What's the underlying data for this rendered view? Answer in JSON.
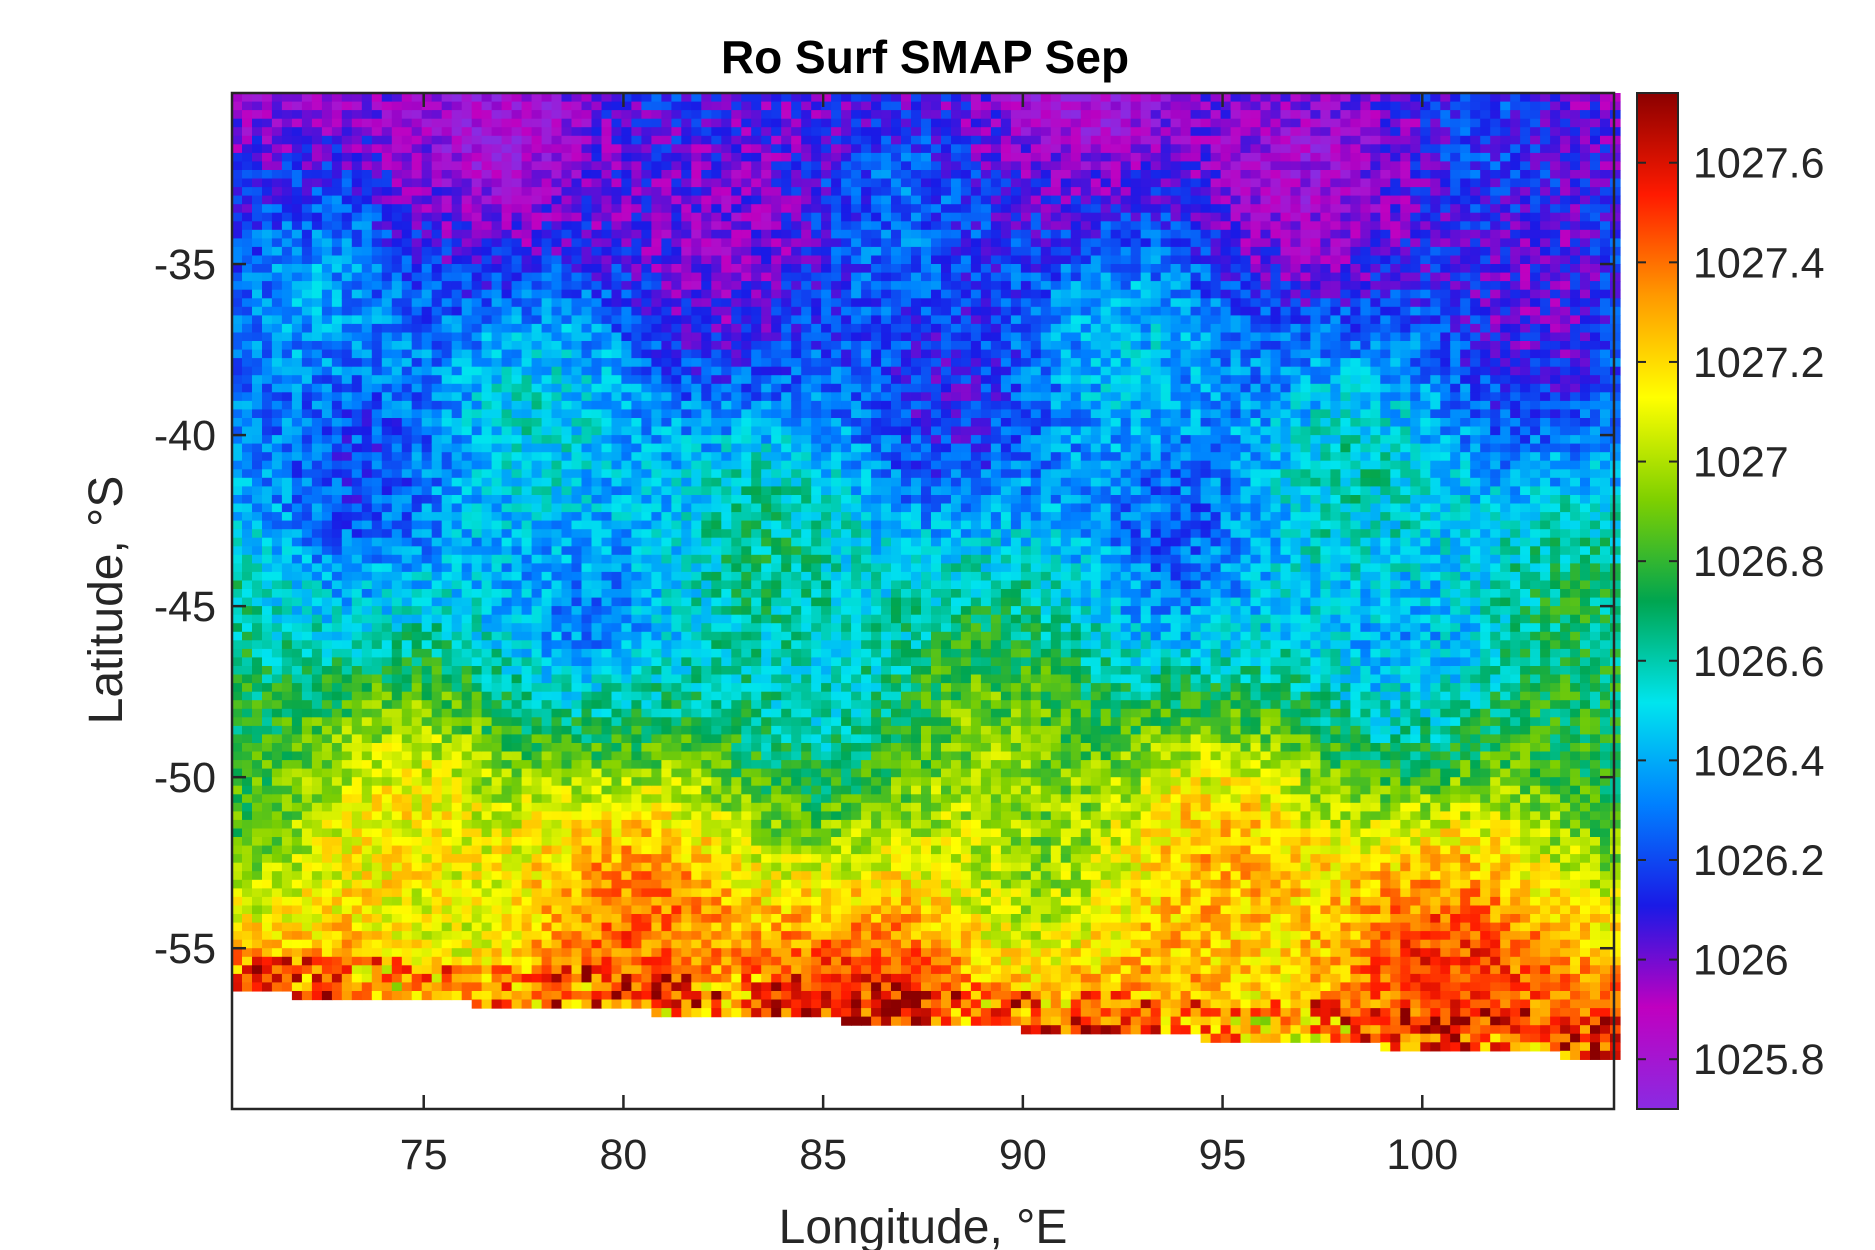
{
  "chart_data": {
    "type": "heatmap",
    "title": "Ro Surf SMAP Sep",
    "xlabel": "Longitude, °E",
    "ylabel": "Latitude, °S",
    "xlim": [
      70.2,
      104.8
    ],
    "ylim": [
      -59.7,
      -30.0
    ],
    "x_ticks": [
      75,
      80,
      85,
      90,
      95,
      100
    ],
    "x_tick_labels": [
      "75",
      "80",
      "85",
      "90",
      "95",
      "100"
    ],
    "y_ticks": [
      -35,
      -40,
      -45,
      -50,
      -55
    ],
    "y_tick_labels": [
      "-35",
      "-40",
      "-45",
      "-50",
      "-55"
    ],
    "grid": false,
    "colorbar": {
      "position": "right",
      "range": [
        1025.7,
        1027.74
      ],
      "ticks": [
        1025.8,
        1026,
        1026.2,
        1026.4,
        1026.6,
        1026.8,
        1027,
        1027.2,
        1027.4,
        1027.6
      ],
      "tick_labels": [
        "1025.8",
        "1026",
        "1026.2",
        "1026.4",
        "1026.6",
        "1026.8",
        "1027",
        "1027.2",
        "1027.4",
        "1027.6"
      ],
      "colors": [
        "#8a2be2",
        "#c000c0",
        "#1a1ae6",
        "#0080ff",
        "#00e5ee",
        "#00a550",
        "#7fd000",
        "#ffff00",
        "#ff9a00",
        "#ff1a00",
        "#8b0000"
      ]
    },
    "field_description_by_latitude": [
      {
        "lat": -31,
        "value": 1025.98
      },
      {
        "lat": -34,
        "value": 1026.1
      },
      {
        "lat": -37,
        "value": 1026.25
      },
      {
        "lat": -40,
        "value": 1026.35
      },
      {
        "lat": -43,
        "value": 1026.45
      },
      {
        "lat": -46,
        "value": 1026.55
      },
      {
        "lat": -48,
        "value": 1026.72
      },
      {
        "lat": -50,
        "value": 1026.92
      },
      {
        "lat": -52,
        "value": 1027.1
      },
      {
        "lat": -54,
        "value": 1027.22
      },
      {
        "lat": -56,
        "value": 1027.35
      }
    ]
  }
}
